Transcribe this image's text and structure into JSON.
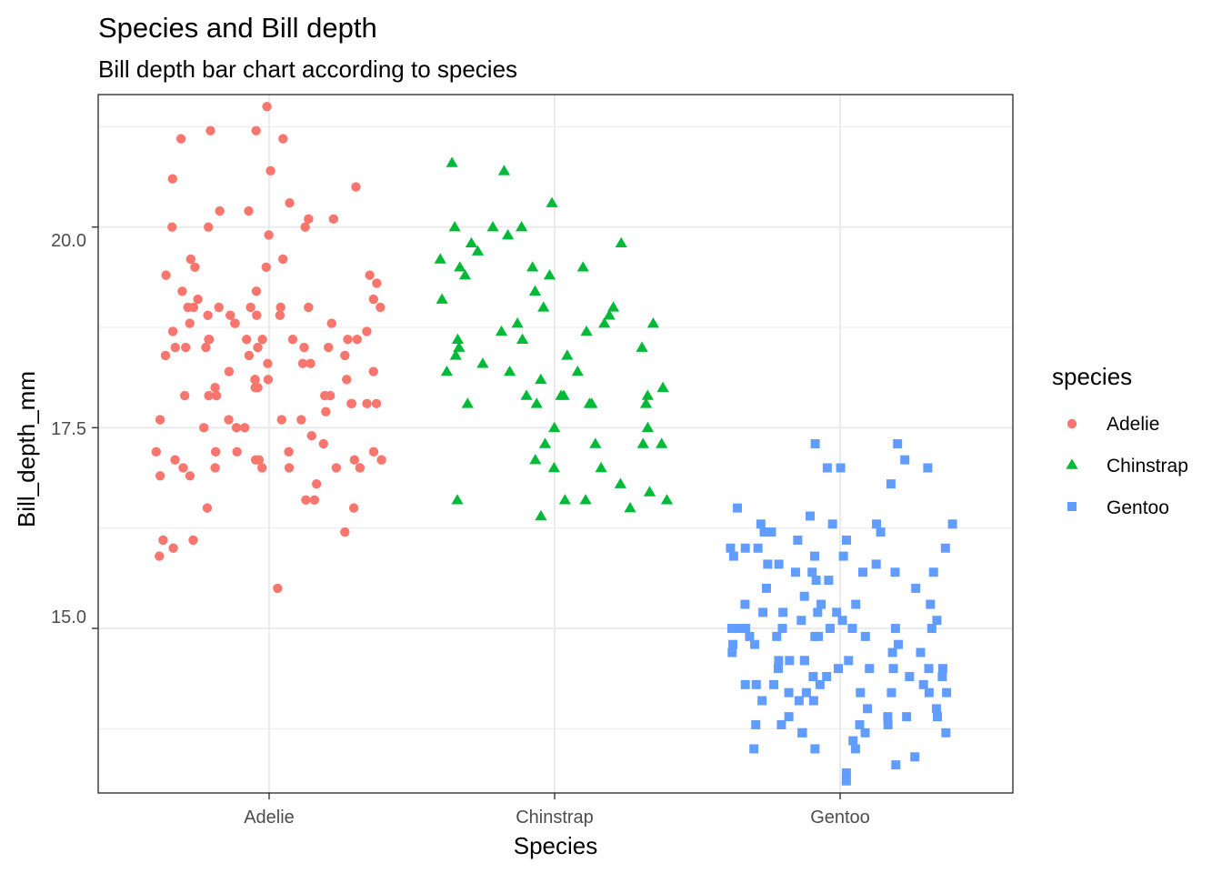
{
  "chart_data": {
    "type": "scatter",
    "title": "Species and Bill depth",
    "subtitle": "Bill depth bar chart according to species",
    "xlabel": "Species",
    "ylabel": "Bill_depth_mm",
    "categories": [
      "Adelie",
      "Chinstrap",
      "Gentoo"
    ],
    "yticks": [
      "15.0",
      "17.5",
      "20.0"
    ],
    "ylim": [
      12.95,
      21.65
    ],
    "grid": true,
    "legend": {
      "title": "species",
      "position": "right",
      "items": [
        {
          "label": "Adelie",
          "shape": "circle",
          "color": "#F8766D"
        },
        {
          "label": "Chinstrap",
          "shape": "triangle",
          "color": "#00BA38"
        },
        {
          "label": "Gentoo",
          "shape": "square",
          "color": "#619CFF"
        }
      ]
    },
    "series": [
      {
        "name": "Adelie",
        "color": "#F8766D",
        "shape": "circle",
        "category_index": 0,
        "values": [
          21.5,
          21.1,
          21.1,
          21.2,
          21.2,
          20.7,
          20.6,
          20.5,
          20.3,
          20.2,
          20.2,
          20.1,
          20.0,
          20.0,
          19.9,
          20.0,
          20.1,
          19.6,
          19.6,
          19.5,
          19.5,
          19.4,
          19.4,
          19.3,
          19.2,
          19.2,
          19.1,
          19.1,
          19.0,
          19.0,
          19.0,
          19.0,
          19.0,
          19.0,
          18.9,
          18.9,
          18.9,
          18.9,
          18.8,
          18.8,
          18.8,
          18.8,
          18.7,
          18.7,
          18.6,
          18.6,
          18.6,
          18.6,
          18.6,
          18.6,
          18.5,
          18.5,
          18.5,
          18.5,
          18.5,
          18.5,
          18.4,
          18.4,
          18.3,
          18.3,
          18.2,
          18.2,
          18.1,
          18.1,
          18.1,
          18.1,
          18.0,
          18.0,
          18.0,
          17.9,
          17.9,
          17.9,
          17.9,
          17.9,
          17.8,
          17.8,
          17.8,
          17.8,
          17.7,
          17.6,
          17.6,
          17.6,
          17.6,
          17.5,
          17.5,
          17.5,
          17.4,
          17.3,
          17.2,
          17.2,
          17.2,
          17.2,
          17.2,
          17.1,
          17.1,
          17.1,
          17.1,
          17.1,
          17.0,
          17.0,
          17.0,
          17.0,
          17.0,
          17.0,
          16.9,
          16.9,
          16.8,
          16.6,
          16.6,
          16.5,
          16.5,
          16.2,
          16.1,
          16.1,
          16.0,
          15.9,
          15.5,
          18.4,
          18.6,
          19.0,
          18.3
        ]
      },
      {
        "name": "Chinstrap",
        "color": "#00BA38",
        "shape": "triangle",
        "category_index": 1,
        "values": [
          20.8,
          20.7,
          20.3,
          20.0,
          20.0,
          20.0,
          19.9,
          19.8,
          19.8,
          19.7,
          19.6,
          19.5,
          19.5,
          19.5,
          19.4,
          19.4,
          19.2,
          19.1,
          19.0,
          19.0,
          18.9,
          18.8,
          18.8,
          18.8,
          18.7,
          18.7,
          18.6,
          18.6,
          18.5,
          18.5,
          18.4,
          18.3,
          18.2,
          18.2,
          18.2,
          18.1,
          17.9,
          17.9,
          17.9,
          17.9,
          17.8,
          17.8,
          17.8,
          17.8,
          17.5,
          17.5,
          17.3,
          17.3,
          17.3,
          17.3,
          17.1,
          17.0,
          17.0,
          16.8,
          16.7,
          16.6,
          16.6,
          16.6,
          16.5,
          16.4,
          16.6,
          18.0,
          18.4,
          17.8
        ]
      },
      {
        "name": "Gentoo",
        "color": "#619CFF",
        "shape": "square",
        "category_index": 2,
        "values": [
          17.3,
          17.3,
          17.1,
          17.0,
          17.0,
          17.0,
          16.8,
          16.5,
          16.4,
          16.3,
          16.3,
          16.3,
          16.3,
          16.2,
          16.2,
          16.2,
          16.1,
          16.1,
          16.0,
          16.0,
          15.9,
          15.9,
          15.9,
          15.8,
          15.8,
          15.8,
          15.7,
          15.7,
          15.7,
          15.7,
          15.6,
          15.5,
          15.5,
          15.4,
          15.3,
          15.3,
          15.3,
          15.3,
          15.2,
          15.2,
          15.2,
          15.2,
          15.1,
          15.1,
          15.0,
          15.0,
          15.0,
          15.0,
          15.0,
          15.0,
          14.9,
          14.9,
          14.9,
          14.9,
          14.8,
          14.8,
          14.7,
          14.7,
          14.7,
          14.6,
          14.6,
          14.6,
          14.6,
          14.5,
          14.5,
          14.5,
          14.5,
          14.5,
          14.5,
          14.4,
          14.4,
          14.4,
          14.3,
          14.3,
          14.3,
          14.3,
          14.2,
          14.2,
          14.2,
          14.2,
          14.2,
          14.1,
          14.1,
          14.0,
          14.0,
          13.9,
          13.9,
          13.9,
          13.8,
          13.8,
          13.8,
          13.7,
          13.7,
          13.7,
          13.7,
          13.6,
          13.5,
          13.5,
          13.5,
          13.4,
          13.3,
          13.2,
          13.1,
          14.9,
          14.1,
          15.0,
          16.0,
          15.7,
          15.1,
          14.8,
          13.9,
          15.6,
          14.3,
          14.4,
          16.0,
          14.2,
          14.6,
          15.0,
          13.8
        ]
      }
    ]
  }
}
